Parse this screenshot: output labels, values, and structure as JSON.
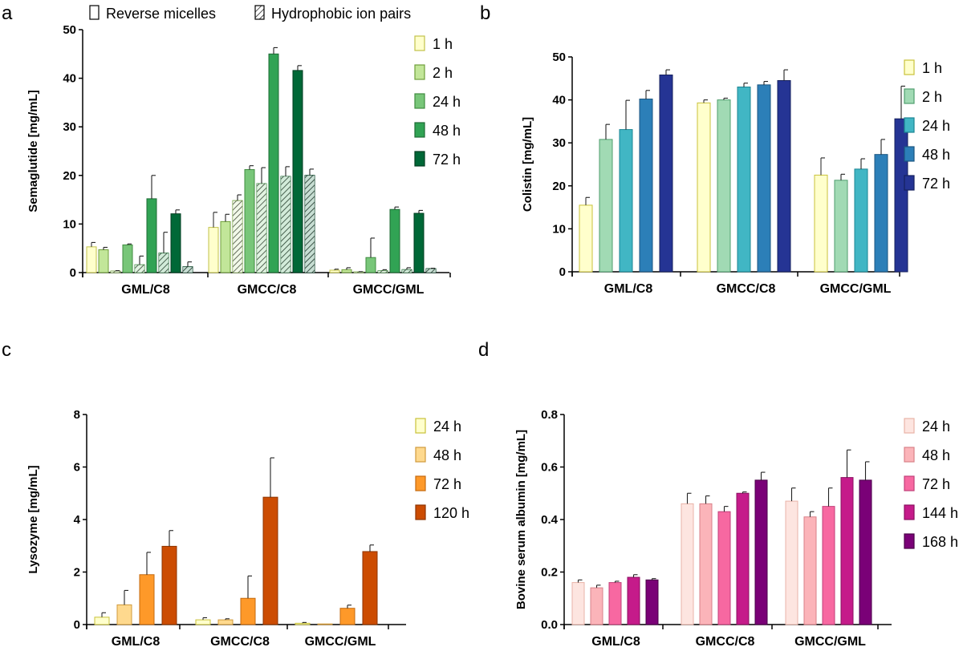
{
  "figure_legend": {
    "reverse_micelles": "Reverse micelles",
    "hydrophobic_ion_pairs": "Hydrophobic ion pairs"
  },
  "chart_data": [
    {
      "panel": "a",
      "type": "bar",
      "ylabel": "Semaglutide [mg/mL]",
      "ylim": [
        0,
        50
      ],
      "yticks": [
        0,
        10,
        20,
        30,
        40,
        50
      ],
      "categories": [
        "GML/C8",
        "GMCC/C8",
        "GMCC/GML"
      ],
      "series": [
        {
          "name": "1 h",
          "color": "#ffffcc",
          "edge": "#c2c24a",
          "values": [
            [
              5.3,
              0.9
            ],
            [
              9.3,
              3.1
            ],
            [
              0.5,
              0.2
            ]
          ]
        },
        {
          "name": "2 h",
          "color": "#c2e699",
          "edge": "#6f9e3a",
          "values": [
            [
              4.7,
              0.5
            ],
            [
              10.5,
              1.5
            ],
            [
              0.6,
              0.4
            ]
          ],
          "hatched": [
            [
              0.3,
              0.1
            ],
            [
              14.8,
              1.2
            ],
            [
              0.1,
              0.1
            ]
          ]
        },
        {
          "name": "24 h",
          "color": "#78c679",
          "edge": "#3f8c40",
          "values": [
            [
              5.7,
              0.2
            ],
            [
              21.2,
              0.8
            ],
            [
              3.1,
              4.0
            ]
          ],
          "hatched": [
            [
              1.6,
              1.8
            ],
            [
              18.3,
              3.3
            ],
            [
              0.4,
              0.2
            ]
          ]
        },
        {
          "name": "48 h",
          "color": "#31a354",
          "edge": "#1e6b35",
          "values": [
            [
              15.2,
              4.8
            ],
            [
              45.0,
              1.3
            ],
            [
              13.0,
              0.5
            ]
          ],
          "hatched": [
            [
              4.0,
              4.3
            ],
            [
              19.8,
              2.0
            ],
            [
              0.6,
              0.4
            ]
          ]
        },
        {
          "name": "72 h",
          "color": "#006837",
          "edge": "#003d20",
          "values": [
            [
              12.1,
              0.8
            ],
            [
              41.6,
              1.0
            ],
            [
              12.2,
              0.6
            ]
          ],
          "hatched": [
            [
              1.2,
              1.0
            ],
            [
              20.0,
              1.3
            ],
            [
              0.8,
              0.1
            ]
          ]
        }
      ]
    },
    {
      "panel": "b",
      "type": "bar",
      "ylabel": "Colistin [mg/mL]",
      "ylim": [
        0,
        50
      ],
      "yticks": [
        0,
        10,
        20,
        30,
        40,
        50
      ],
      "categories": [
        "GML/C8",
        "GMCC/C8",
        "GMCC/GML"
      ],
      "series": [
        {
          "name": "1 h",
          "color": "#ffffcc",
          "edge": "#c9c23a",
          "values": [
            [
              15.5,
              1.8
            ],
            [
              39.3,
              0.7
            ],
            [
              22.5,
              4.0
            ]
          ]
        },
        {
          "name": "2 h",
          "color": "#a1dab4",
          "edge": "#4f9e6e",
          "values": [
            [
              30.8,
              3.5
            ],
            [
              40.0,
              0.4
            ],
            [
              21.3,
              1.4
            ]
          ]
        },
        {
          "name": "24 h",
          "color": "#41b6c4",
          "edge": "#1b8593",
          "values": [
            [
              33.1,
              6.8
            ],
            [
              43.0,
              0.9
            ],
            [
              23.9,
              2.4
            ]
          ]
        },
        {
          "name": "48 h",
          "color": "#2c7fb8",
          "edge": "#1b5680",
          "values": [
            [
              40.2,
              2.0
            ],
            [
              43.5,
              0.8
            ],
            [
              27.3,
              3.5
            ]
          ]
        },
        {
          "name": "72 h",
          "color": "#253494",
          "edge": "#15205e",
          "values": [
            [
              45.8,
              1.2
            ],
            [
              44.5,
              2.5
            ],
            [
              35.6,
              7.6
            ]
          ]
        }
      ]
    },
    {
      "panel": "c",
      "type": "bar",
      "ylabel": "Lysozyme [mg/mL]",
      "ylim": [
        0,
        8
      ],
      "yticks": [
        0,
        2,
        4,
        6,
        8
      ],
      "categories": [
        "GML/C8",
        "GMCC/C8",
        "GMCC/GML"
      ],
      "series": [
        {
          "name": "24 h",
          "color": "#ffffcc",
          "edge": "#c9c23a",
          "values": [
            [
              0.28,
              0.17
            ],
            [
              0.18,
              0.08
            ],
            [
              0.05,
              0.03
            ]
          ]
        },
        {
          "name": "48 h",
          "color": "#fed98e",
          "edge": "#d09a3c",
          "values": [
            [
              0.75,
              0.55
            ],
            [
              0.18,
              0.04
            ],
            [
              0.0,
              0.0
            ]
          ]
        },
        {
          "name": "72 h",
          "color": "#fe9929",
          "edge": "#c46a0f",
          "values": [
            [
              1.9,
              0.85
            ],
            [
              1.0,
              0.85
            ],
            [
              0.62,
              0.12
            ]
          ]
        },
        {
          "name": "120 h",
          "color": "#cc4c02",
          "edge": "#8e3400",
          "values": [
            [
              2.98,
              0.6
            ],
            [
              4.85,
              1.5
            ],
            [
              2.78,
              0.25
            ]
          ]
        }
      ]
    },
    {
      "panel": "d",
      "type": "bar",
      "ylabel": "Bovine serum albumin [mg/mL]",
      "ylim": [
        0,
        0.8
      ],
      "yticks": [
        "0.0",
        "0.2",
        "0.4",
        "0.6",
        "0.8"
      ],
      "categories": [
        "GML/C8",
        "GMCC/C8",
        "GMCC/GML"
      ],
      "series": [
        {
          "name": "24 h",
          "color": "#fde5e0",
          "edge": "#e9b3a8",
          "values": [
            [
              0.16,
              0.01
            ],
            [
              0.46,
              0.04
            ],
            [
              0.47,
              0.05
            ]
          ]
        },
        {
          "name": "48 h",
          "color": "#fbb4b9",
          "edge": "#d98189",
          "values": [
            [
              0.14,
              0.01
            ],
            [
              0.46,
              0.03
            ],
            [
              0.41,
              0.02
            ]
          ]
        },
        {
          "name": "72 h",
          "color": "#f768a1",
          "edge": "#c0407a",
          "values": [
            [
              0.16,
              0.005
            ],
            [
              0.43,
              0.02
            ],
            [
              0.45,
              0.07
            ]
          ]
        },
        {
          "name": "144 h",
          "color": "#c51b8a",
          "edge": "#8a0f60",
          "values": [
            [
              0.18,
              0.01
            ],
            [
              0.5,
              0.005
            ],
            [
              0.56,
              0.105
            ]
          ]
        },
        {
          "name": "168 h",
          "color": "#7a0177",
          "edge": "#4a0048",
          "values": [
            [
              0.17,
              0.005
            ],
            [
              0.55,
              0.03
            ],
            [
              0.55,
              0.07
            ]
          ]
        }
      ]
    }
  ]
}
